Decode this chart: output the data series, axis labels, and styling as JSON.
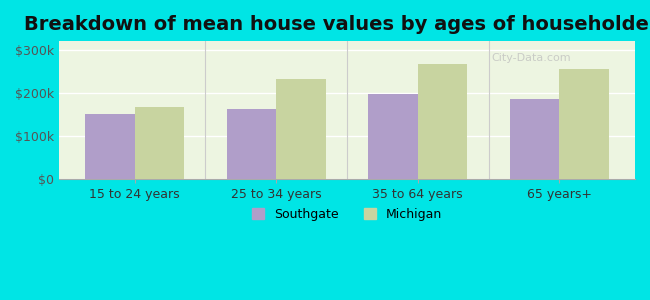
{
  "title": "Breakdown of mean house values by ages of householders",
  "categories": [
    "15 to 24 years",
    "25 to 34 years",
    "35 to 64 years",
    "65 years+"
  ],
  "southgate_values": [
    152000,
    163000,
    197000,
    185000
  ],
  "michigan_values": [
    168000,
    232000,
    268000,
    255000
  ],
  "southgate_color": "#b09ec9",
  "michigan_color": "#c8d4a0",
  "background_color": "#00e5e5",
  "plot_bg_color": "#edf5e1",
  "ylim": [
    0,
    320000
  ],
  "yticks": [
    0,
    100000,
    200000,
    300000
  ],
  "ytick_labels": [
    "$0",
    "$100k",
    "$200k",
    "$300k"
  ],
  "bar_width": 0.35,
  "title_fontsize": 14,
  "legend_southgate": "Southgate",
  "legend_michigan": "Michigan",
  "watermark": "City-Data.com"
}
